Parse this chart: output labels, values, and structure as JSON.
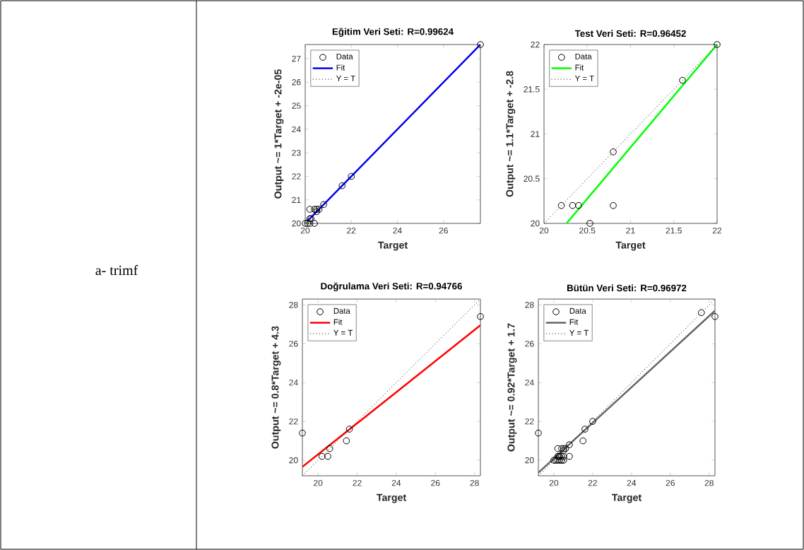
{
  "chart_data": [
    {
      "type": "scatter",
      "title": "Eğitim Veri Seti: R=0.99624",
      "xlabel": "Target",
      "ylabel": "Output ~= 1*Target + -2e-05",
      "xlim": [
        20,
        27.6
      ],
      "ylim": [
        20,
        27.6
      ],
      "xticks": [
        20,
        22,
        24,
        26
      ],
      "yticks": [
        20,
        21,
        22,
        23,
        24,
        25,
        26,
        27
      ],
      "legend": "top left",
      "annotations": [
        "a- trimf"
      ],
      "series": [
        {
          "name": "Data",
          "marker": "circle",
          "color": "#000000",
          "x": [
            20,
            20.1,
            20.2,
            20.4,
            20.2,
            20.25,
            20.2,
            20.4,
            20.5,
            20.6,
            20.5,
            20.8,
            21.6,
            22,
            27.6
          ],
          "values": [
            20,
            20,
            20,
            20,
            20.2,
            20.2,
            20.6,
            20.6,
            20.6,
            20.6,
            20.5,
            20.8,
            21.6,
            22,
            27.6
          ]
        },
        {
          "name": "Fit",
          "type": "line",
          "color": "#0000ff",
          "x": [
            20.1,
            27.6
          ],
          "values": [
            20.1,
            27.6
          ]
        },
        {
          "name": "Y = T",
          "type": "line",
          "line_style": "dotted",
          "color": "#000000",
          "x": [
            20,
            27.6
          ],
          "values": [
            20,
            27.6
          ]
        }
      ]
    },
    {
      "type": "scatter",
      "title": "Test Veri Seti: R=0.96452",
      "xlabel": "Target",
      "ylabel": "Output ~= 1.1*Target + -2.8",
      "xlim": [
        20,
        22
      ],
      "ylim": [
        20,
        22
      ],
      "xticks": [
        20,
        20.5,
        21,
        21.5,
        22
      ],
      "yticks": [
        20,
        20.5,
        21,
        21.5,
        22
      ],
      "legend": "top left",
      "series": [
        {
          "name": "Data",
          "marker": "circle",
          "color": "#000000",
          "x": [
            20.2,
            20.33,
            20.4,
            20.53,
            20.8,
            20.8,
            21.6,
            22
          ],
          "values": [
            20.2,
            20.2,
            20.2,
            20,
            20.8,
            20.2,
            21.6,
            22
          ]
        },
        {
          "name": "Fit",
          "type": "line",
          "color": "#00ff00",
          "x": [
            20.26,
            22
          ],
          "values": [
            20,
            22
          ]
        },
        {
          "name": "Y = T",
          "type": "line",
          "line_style": "dotted",
          "color": "#000000",
          "x": [
            20,
            22
          ],
          "values": [
            20,
            22
          ]
        }
      ]
    },
    {
      "type": "scatter",
      "title": "Doğrulama Veri Seti: R=0.94766",
      "xlabel": "Target",
      "ylabel": "Output ~= 0.8*Target + 4.3",
      "xlim": [
        19.2,
        28.3
      ],
      "ylim": [
        19.2,
        28.3
      ],
      "xticks": [
        20,
        22,
        24,
        26,
        28
      ],
      "yticks": [
        20,
        22,
        24,
        26,
        28
      ],
      "legend": "top left",
      "series": [
        {
          "name": "Data",
          "marker": "circle",
          "color": "#000000",
          "x": [
            19.2,
            20.2,
            20.5,
            20.6,
            21.45,
            21.6,
            28.3
          ],
          "values": [
            21.4,
            20.2,
            20.2,
            20.6,
            21,
            21.6,
            27.4
          ]
        },
        {
          "name": "Fit",
          "type": "line",
          "color": "#ff0000",
          "x": [
            19.2,
            28.3
          ],
          "values": [
            19.66,
            26.95
          ]
        },
        {
          "name": "Y = T",
          "type": "line",
          "line_style": "dotted",
          "color": "#000000",
          "x": [
            19.2,
            28.3
          ],
          "values": [
            19.2,
            28.3
          ]
        }
      ]
    },
    {
      "type": "scatter",
      "title": "Bütün Veri Seti: R=0.96972",
      "xlabel": "Target",
      "ylabel": "Output ~= 0.92*Target + 1.7",
      "xlim": [
        19.2,
        28.3
      ],
      "ylim": [
        19.2,
        28.3
      ],
      "xticks": [
        20,
        22,
        24,
        26,
        28
      ],
      "yticks": [
        20,
        22,
        24,
        26,
        28
      ],
      "legend": "top left",
      "series": [
        {
          "name": "Data",
          "marker": "circle",
          "color": "#000000",
          "x": [
            19.2,
            20,
            20.1,
            20.2,
            20.3,
            20.4,
            20.5,
            20.2,
            20.25,
            20.3,
            20.4,
            20.5,
            20.2,
            20.4,
            20.5,
            20.6,
            20.5,
            20.8,
            20.8,
            21.5,
            21.6,
            22,
            27.6,
            28.3
          ],
          "values": [
            21.4,
            20,
            20,
            20,
            20,
            20,
            20,
            20.2,
            20.2,
            20.2,
            20.2,
            20.2,
            20.6,
            20.6,
            20.6,
            20.6,
            20.5,
            20.8,
            20.2,
            21,
            21.6,
            22,
            27.6,
            27.4
          ]
        },
        {
          "name": "Fit",
          "type": "line",
          "color": "#666666",
          "x": [
            19.2,
            28.3
          ],
          "values": [
            19.36,
            27.7
          ]
        },
        {
          "name": "Y = T",
          "type": "line",
          "line_style": "dotted",
          "color": "#000000",
          "x": [
            19.2,
            28.3
          ],
          "values": [
            19.2,
            28.3
          ]
        }
      ]
    }
  ]
}
